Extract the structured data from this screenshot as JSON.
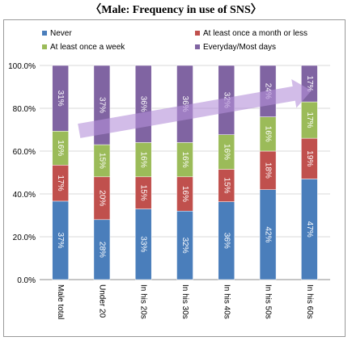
{
  "chart_data": {
    "type": "bar",
    "stacked": true,
    "percent_stacked": true,
    "title": "〈Male: Frequency in use of SNS〉",
    "categories": [
      "Male total",
      "Under 20",
      "In his 20s",
      "In his 30s",
      "In his 40s",
      "In his 50s",
      "In his 60s"
    ],
    "series": [
      {
        "name": "Never",
        "color": "#4a7ebb",
        "values": [
          37,
          28,
          33,
          32,
          36,
          42,
          47
        ]
      },
      {
        "name": "At least once a month or less",
        "color": "#c0504d",
        "values": [
          17,
          20,
          15,
          16,
          15,
          18,
          19
        ]
      },
      {
        "name": "At least once a week",
        "color": "#9bbb59",
        "values": [
          16,
          15,
          16,
          16,
          16,
          16,
          17
        ]
      },
      {
        "name": "Everyday/Most days",
        "color": "#8064a2",
        "values": [
          31,
          37,
          36,
          36,
          32,
          24,
          17
        ]
      }
    ],
    "ylim": [
      0,
      100
    ],
    "y_ticks": [
      "0.0%",
      "20.0%",
      "40.0%",
      "60.0%",
      "80.0%",
      "100.0%"
    ],
    "legend_position": "top",
    "grid": true,
    "annotations": [
      {
        "type": "trend-arrow",
        "color": "#b48fd8"
      }
    ]
  }
}
